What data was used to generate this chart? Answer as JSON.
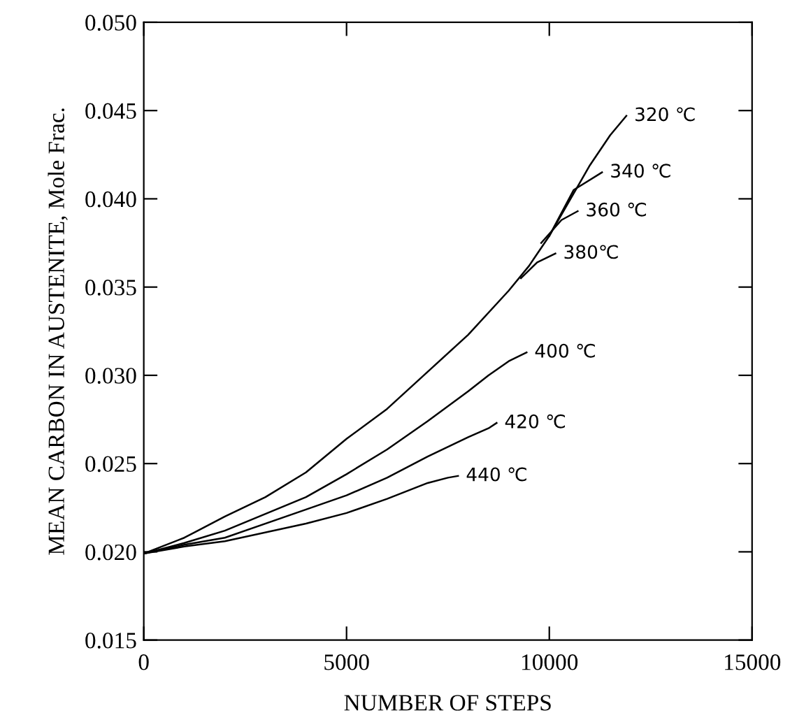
{
  "chart_data": {
    "type": "line",
    "xlabel": "NUMBER OF STEPS",
    "ylabel": "MEAN CARBON IN AUSTENITE, Mole Frac.",
    "xlim": [
      0,
      15000
    ],
    "xticks": [
      0,
      5000,
      10000,
      15000
    ],
    "ylim": [
      0.015,
      0.05
    ],
    "yticks": [
      {
        "value": 0.015,
        "label": "0.015"
      },
      {
        "value": 0.02,
        "label": "0.020"
      },
      {
        "value": 0.025,
        "label": "0.025"
      },
      {
        "value": 0.03,
        "label": "0.030"
      },
      {
        "value": 0.035,
        "label": "0.035"
      },
      {
        "value": 0.04,
        "label": "0.040"
      },
      {
        "value": 0.045,
        "label": "0.045"
      },
      {
        "value": 0.05,
        "label": "0.050"
      }
    ],
    "grid": false,
    "marker": "none",
    "line_style": "solid",
    "series": [
      {
        "name": "320 ℃",
        "color": "#000000",
        "x": [
          0,
          1000,
          2000,
          3000,
          4000,
          5000,
          6000,
          7000,
          8000,
          9000,
          9500,
          10000,
          10500,
          11000,
          11500,
          11900
        ],
        "values": [
          0.0199,
          0.0208,
          0.022,
          0.0231,
          0.0245,
          0.0264,
          0.0281,
          0.0302,
          0.0323,
          0.0348,
          0.0362,
          0.0379,
          0.0399,
          0.0419,
          0.0436,
          0.0447
        ]
      },
      {
        "name": "340 ℃",
        "color": "#000000",
        "x": [
          10000,
          10600,
          11300
        ],
        "values": [
          0.0379,
          0.0405,
          0.0415
        ]
      },
      {
        "name": "360 ℃",
        "color": "#000000",
        "x": [
          9800,
          10300,
          10700
        ],
        "values": [
          0.0375,
          0.0388,
          0.0393
        ]
      },
      {
        "name": "380℃",
        "color": "#000000",
        "x": [
          9300,
          9700,
          10150
        ],
        "values": [
          0.0355,
          0.0364,
          0.0369
        ]
      },
      {
        "name": "400 ℃",
        "color": "#000000",
        "x": [
          0,
          1000,
          2000,
          4000,
          5000,
          6000,
          7000,
          8000,
          8500,
          9000,
          9440
        ],
        "values": [
          0.0199,
          0.0205,
          0.0212,
          0.0231,
          0.0244,
          0.0258,
          0.0274,
          0.0291,
          0.03,
          0.0308,
          0.0313
        ]
      },
      {
        "name": "420 ℃",
        "color": "#000000",
        "x": [
          0,
          1000,
          2000,
          4000,
          5000,
          6000,
          7000,
          8000,
          8500,
          8700
        ],
        "values": [
          0.0199,
          0.0204,
          0.0208,
          0.0224,
          0.0232,
          0.0242,
          0.0254,
          0.0265,
          0.027,
          0.0273
        ]
      },
      {
        "name": "440 ℃",
        "color": "#000000",
        "x": [
          0,
          1000,
          2000,
          4000,
          5000,
          6000,
          7000,
          7500,
          7750
        ],
        "values": [
          0.0199,
          0.0203,
          0.0206,
          0.0216,
          0.0222,
          0.023,
          0.0239,
          0.0242,
          0.0243
        ]
      }
    ]
  }
}
